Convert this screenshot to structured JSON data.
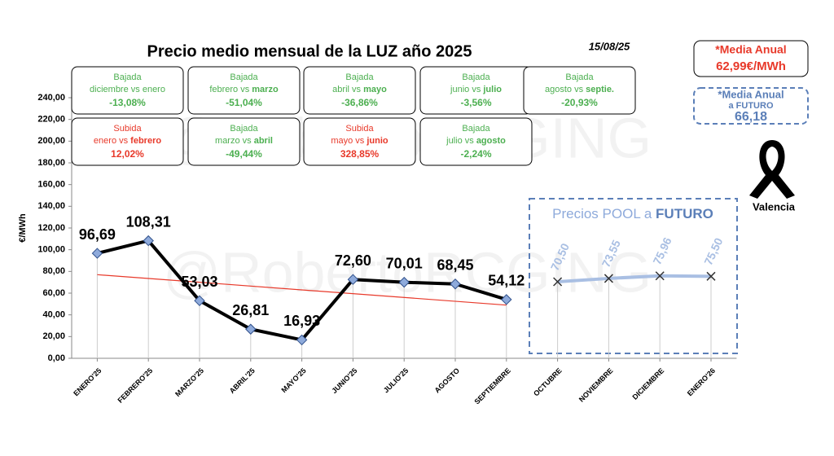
{
  "chart_data": {
    "type": "line",
    "title": "Precio medio mensual de la LUZ año 2025",
    "date": "15/08/25",
    "watermark": "@RobertoRCGING",
    "y_label": "€/MWh",
    "ylim": [
      0,
      240
    ],
    "yticks": [
      {
        "value": 0,
        "label": "0,00"
      },
      {
        "value": 20,
        "label": "20,00"
      },
      {
        "value": 40,
        "label": "40,00"
      },
      {
        "value": 60,
        "label": "60,00"
      },
      {
        "value": 80,
        "label": "80,00"
      },
      {
        "value": 100,
        "label": "100,00"
      },
      {
        "value": 120,
        "label": "120,00"
      },
      {
        "value": 140,
        "label": "140,00"
      },
      {
        "value": 160,
        "label": "160,00"
      },
      {
        "value": 180,
        "label": "180,00"
      },
      {
        "value": 200,
        "label": "200,00"
      },
      {
        "value": 220,
        "label": "220,00"
      },
      {
        "value": 240,
        "label": "240,00"
      }
    ],
    "categories": [
      "ENERO'25",
      "FEBRERO'25",
      "MARZO'25",
      "ABRIL'25",
      "MAYO'25",
      "JUNIO'25",
      "JULIO'25",
      "AGOSTO",
      "SEPTIEMBRE",
      "OCTUBRE",
      "NOVIEMBRE",
      "DICIEMBRE",
      "ENERO'26"
    ],
    "series": [
      {
        "color": "#000000",
        "marker_color": "#8eaadb",
        "values": [
          96.69,
          108.31,
          53.03,
          26.81,
          16.93,
          72.6,
          70.01,
          68.45,
          54.12,
          null,
          null,
          null,
          null
        ],
        "value_labels": [
          "96,69",
          "108,31",
          "53,03",
          "26,81",
          "16,93",
          "72,60",
          "70,01",
          "68,45",
          "54,12",
          null,
          null,
          null,
          null
        ]
      },
      {
        "color": "#a9bfe3",
        "values": [
          null,
          null,
          null,
          null,
          null,
          null,
          null,
          null,
          null,
          70.5,
          73.55,
          75.96,
          75.5
        ],
        "value_labels": [
          null,
          null,
          null,
          null,
          null,
          null,
          null,
          null,
          null,
          "70,50",
          "73,55",
          "75,96",
          "75,50"
        ]
      }
    ],
    "trend": {
      "color": "#e8392a",
      "values": [
        77,
        49
      ]
    },
    "future_box": {
      "title": [
        "Precios POOL a ",
        "FUTURO"
      ]
    },
    "boxes": [
      {
        "kind": "Bajada",
        "text": [
          "diciembre vs enero"
        ],
        "value": "-13,08%"
      },
      {
        "kind": "Bajada",
        "text": [
          "febrero vs ",
          "marzo"
        ],
        "value": "-51,04%"
      },
      {
        "kind": "Bajada",
        "text": [
          "abril vs ",
          "mayo"
        ],
        "value": "-36,86%"
      },
      {
        "kind": "Bajada",
        "text": [
          "junio vs ",
          "julio"
        ],
        "value": "-3,56%"
      },
      {
        "kind": "Bajada",
        "text": [
          "agosto vs ",
          "septie."
        ],
        "value": "-20,93%"
      },
      {
        "kind": "Subida",
        "text": [
          "enero vs ",
          "febrero"
        ],
        "value": "12,02%"
      },
      {
        "kind": "Bajada",
        "text": [
          "marzo vs ",
          "abril"
        ],
        "value": "-49,44%"
      },
      {
        "kind": "Subida",
        "text": [
          "mayo vs ",
          "junio"
        ],
        "value": "328,85%"
      },
      {
        "kind": "Bajada",
        "text": [
          "julio vs ",
          "agosto"
        ],
        "value": "-2,24%"
      }
    ],
    "media_anual": {
      "lines": [
        "*Media Anual",
        "62,99€/MWh"
      ]
    },
    "media_futuro": {
      "lines": [
        "*Media Anual",
        "a FUTURO",
        "66,18"
      ]
    },
    "ribbon_label": "Valencia"
  }
}
